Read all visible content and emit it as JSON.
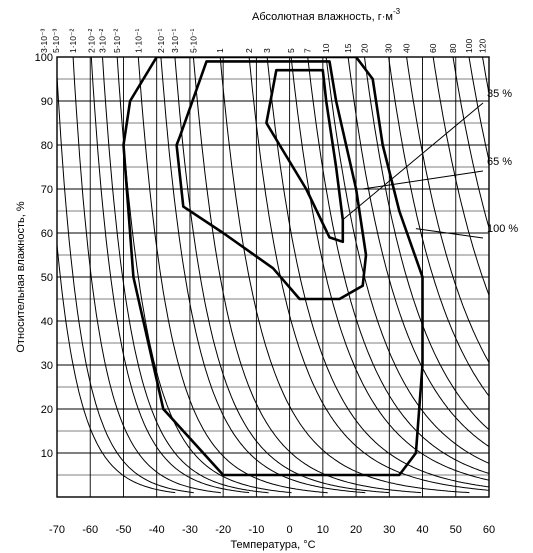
{
  "chart_data": {
    "type": "line",
    "xlabel": "Температура, °С",
    "ylabel": "Относительная влажность, %",
    "top_axis_label": "Абсолютная влажность, г·м",
    "top_axis_label_exponent": "-3",
    "xlim": [
      -70,
      60
    ],
    "ylim": [
      0,
      100
    ],
    "x_ticks": [
      "-70",
      "-60",
      "-50",
      "-40",
      "-30",
      "-20",
      "-10",
      "0",
      "10",
      "20",
      "30",
      "40",
      "50",
      "60"
    ],
    "y_ticks": [
      "10",
      "20",
      "30",
      "40",
      "50",
      "60",
      "70",
      "80",
      "90",
      "100"
    ],
    "grid": true,
    "absolute_humidity_curves": [
      {
        "label": "3·10⁻³",
        "value": 0.003
      },
      {
        "label": "5·10⁻³",
        "value": 0.005
      },
      {
        "label": "1·10⁻²",
        "value": 0.01
      },
      {
        "label": "2·10⁻²",
        "value": 0.02
      },
      {
        "label": "3·10⁻²",
        "value": 0.03
      },
      {
        "label": "5·10⁻²",
        "value": 0.05
      },
      {
        "label": "1·10⁻¹",
        "value": 0.1
      },
      {
        "label": "2·10⁻¹",
        "value": 0.2
      },
      {
        "label": "3·10⁻¹",
        "value": 0.3
      },
      {
        "label": "5·10⁻¹",
        "value": 0.5
      },
      {
        "label": "1",
        "value": 1
      },
      {
        "label": "2",
        "value": 2
      },
      {
        "label": "3",
        "value": 3
      },
      {
        "label": "5",
        "value": 5
      },
      {
        "label": "7",
        "value": 7
      },
      {
        "label": "10",
        "value": 10
      },
      {
        "label": "15",
        "value": 15
      },
      {
        "label": "20",
        "value": 20
      },
      {
        "label": "30",
        "value": 30
      },
      {
        "label": "40",
        "value": 40
      },
      {
        "label": "60",
        "value": 60
      },
      {
        "label": "80",
        "value": 80
      },
      {
        "label": "100",
        "value": 100
      },
      {
        "label": "120",
        "value": 120
      }
    ],
    "series": [
      {
        "name": "35 %",
        "points": [
          [
            -7,
            85
          ],
          [
            -4,
            97
          ],
          [
            10,
            97
          ],
          [
            11,
            90
          ],
          [
            14,
            75
          ],
          [
            16,
            63
          ],
          [
            16,
            58
          ],
          [
            12,
            59
          ],
          [
            5,
            70
          ],
          [
            -3,
            80
          ],
          [
            -7,
            85
          ]
        ]
      },
      {
        "name": "65 %",
        "points": [
          [
            -33,
            82
          ],
          [
            -25,
            99
          ],
          [
            12,
            99
          ],
          [
            14,
            90
          ],
          [
            20,
            70
          ],
          [
            23,
            55
          ],
          [
            22,
            48
          ],
          [
            15,
            45
          ],
          [
            3,
            45
          ],
          [
            -5,
            52
          ],
          [
            -20,
            60
          ],
          [
            -32,
            66
          ],
          [
            -34,
            80
          ],
          [
            -33,
            82
          ]
        ]
      },
      {
        "name": "100 %",
        "points": [
          [
            -48,
            90
          ],
          [
            -40,
            100
          ],
          [
            20,
            100
          ],
          [
            25,
            95
          ],
          [
            28,
            80
          ],
          [
            33,
            65
          ],
          [
            40,
            50
          ],
          [
            40,
            30
          ],
          [
            38,
            10
          ],
          [
            33,
            5
          ],
          [
            -20,
            5
          ],
          [
            -38,
            20
          ],
          [
            -47,
            50
          ],
          [
            -50,
            80
          ],
          [
            -48,
            90
          ]
        ]
      }
    ]
  }
}
